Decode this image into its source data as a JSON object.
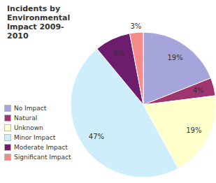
{
  "chart_data": {
    "type": "pie",
    "title": "Incidents by Environmental Impact 2009-2010",
    "categories": [
      "No Impact",
      "Natural",
      "Unknown",
      "Minor Impact",
      "Moderate Impact",
      "Significant Impact"
    ],
    "values": [
      19,
      4,
      19,
      47,
      8,
      3
    ],
    "value_labels": [
      "19%",
      "4%",
      "19%",
      "47%",
      "8%",
      "3%"
    ],
    "colors": [
      "#a5a5dc",
      "#a0346e",
      "#ffffcc",
      "#cdeefa",
      "#6e1c6e",
      "#f58a8a"
    ],
    "data_labels": true,
    "legend": "left"
  }
}
